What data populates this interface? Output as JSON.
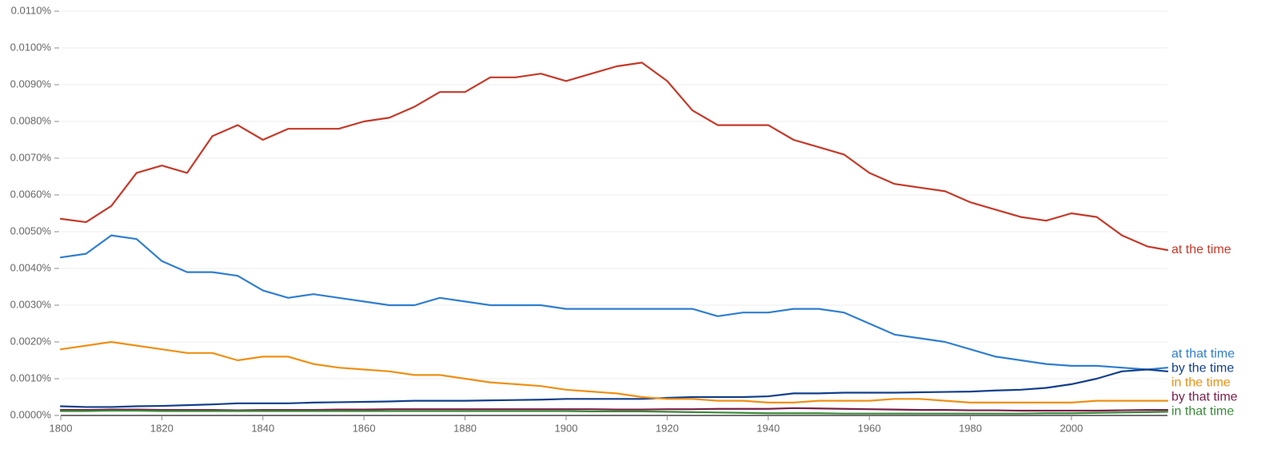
{
  "chart_data": {
    "type": "line",
    "x": [
      1800,
      1805,
      1810,
      1815,
      1820,
      1825,
      1830,
      1835,
      1840,
      1845,
      1850,
      1855,
      1860,
      1865,
      1870,
      1875,
      1880,
      1885,
      1890,
      1895,
      1900,
      1905,
      1910,
      1915,
      1920,
      1925,
      1930,
      1935,
      1940,
      1945,
      1950,
      1955,
      1960,
      1965,
      1970,
      1975,
      1980,
      1985,
      1990,
      1995,
      2000,
      2005,
      2010,
      2015,
      2019
    ],
    "series": [
      {
        "name": "at the time",
        "color": "#c53929",
        "values": [
          0.00535,
          0.00526,
          0.0057,
          0.0066,
          0.0068,
          0.0066,
          0.0076,
          0.0079,
          0.0075,
          0.0078,
          0.0078,
          0.0078,
          0.008,
          0.0081,
          0.0084,
          0.0088,
          0.0088,
          0.0092,
          0.0092,
          0.0093,
          0.0091,
          0.0093,
          0.0095,
          0.0096,
          0.0091,
          0.0083,
          0.0079,
          0.0079,
          0.0079,
          0.0075,
          0.0073,
          0.0071,
          0.0066,
          0.0063,
          0.0062,
          0.0061,
          0.0058,
          0.0056,
          0.0054,
          0.0053,
          0.0055,
          0.0054,
          0.0049,
          0.0046,
          0.0045
        ]
      },
      {
        "name": "at that time",
        "color": "#2f7ed0",
        "values": [
          0.0043,
          0.0044,
          0.0049,
          0.0048,
          0.0042,
          0.0039,
          0.0039,
          0.0038,
          0.0034,
          0.0032,
          0.0033,
          0.0032,
          0.0031,
          0.003,
          0.003,
          0.0032,
          0.0031,
          0.003,
          0.003,
          0.003,
          0.0029,
          0.0029,
          0.0029,
          0.0029,
          0.0029,
          0.0029,
          0.0027,
          0.0028,
          0.0028,
          0.0029,
          0.0029,
          0.0028,
          0.0025,
          0.0022,
          0.0021,
          0.002,
          0.0018,
          0.0016,
          0.0015,
          0.0014,
          0.00135,
          0.00135,
          0.0013,
          0.00125,
          0.0013
        ]
      },
      {
        "name": "by the time",
        "color": "#123f8c",
        "values": [
          0.00025,
          0.00023,
          0.00023,
          0.00025,
          0.00026,
          0.00028,
          0.0003,
          0.00033,
          0.00033,
          0.00033,
          0.00035,
          0.00036,
          0.00037,
          0.00038,
          0.0004,
          0.0004,
          0.0004,
          0.00041,
          0.00042,
          0.00043,
          0.00045,
          0.00045,
          0.00045,
          0.00045,
          0.00048,
          0.0005,
          0.0005,
          0.0005,
          0.00052,
          0.0006,
          0.0006,
          0.00062,
          0.00062,
          0.00062,
          0.00063,
          0.00064,
          0.00065,
          0.00068,
          0.0007,
          0.00075,
          0.00085,
          0.001,
          0.0012,
          0.00125,
          0.0012
        ]
      },
      {
        "name": "in the time",
        "color": "#ef8f13",
        "values": [
          0.0018,
          0.0019,
          0.002,
          0.0019,
          0.0018,
          0.0017,
          0.0017,
          0.0015,
          0.0016,
          0.0016,
          0.0014,
          0.0013,
          0.00125,
          0.0012,
          0.0011,
          0.0011,
          0.001,
          0.0009,
          0.00085,
          0.0008,
          0.0007,
          0.00065,
          0.0006,
          0.0005,
          0.00045,
          0.00045,
          0.0004,
          0.0004,
          0.00035,
          0.00035,
          0.0004,
          0.0004,
          0.0004,
          0.00045,
          0.00045,
          0.0004,
          0.00035,
          0.00035,
          0.00035,
          0.00035,
          0.00035,
          0.0004,
          0.0004,
          0.0004,
          0.0004
        ]
      },
      {
        "name": "by that time",
        "color": "#7b1f47",
        "values": [
          0.00015,
          0.00015,
          0.00016,
          0.00016,
          0.00015,
          0.00015,
          0.00015,
          0.00014,
          0.00015,
          0.00015,
          0.00015,
          0.00016,
          0.00016,
          0.00017,
          0.00017,
          0.00017,
          0.00017,
          0.00017,
          0.00017,
          0.00017,
          0.00017,
          0.00017,
          0.00016,
          0.00016,
          0.00017,
          0.00017,
          0.00018,
          0.00018,
          0.00018,
          0.0002,
          0.00019,
          0.00018,
          0.00017,
          0.00016,
          0.00015,
          0.00015,
          0.00014,
          0.00014,
          0.00013,
          0.00013,
          0.00013,
          0.00013,
          0.00014,
          0.00015,
          0.00015
        ]
      },
      {
        "name": "in that time",
        "color": "#3a8a3a",
        "values": [
          0.00012,
          0.00012,
          0.00013,
          0.00013,
          0.00012,
          0.00012,
          0.00012,
          0.00012,
          0.00012,
          0.00012,
          0.00012,
          0.00012,
          0.00012,
          0.00012,
          0.00012,
          0.00012,
          0.00012,
          0.00012,
          0.00012,
          0.00012,
          0.00012,
          0.00011,
          0.00011,
          0.00011,
          0.0001,
          9e-05,
          8e-05,
          7e-05,
          6e-05,
          6e-05,
          6e-05,
          5e-05,
          5e-05,
          5e-05,
          5e-05,
          5e-05,
          5e-05,
          5e-05,
          5e-05,
          6e-05,
          6e-05,
          7e-05,
          8e-05,
          9e-05,
          0.0001
        ]
      }
    ],
    "xlim": [
      1800,
      2019
    ],
    "xticks": [
      1800,
      1820,
      1840,
      1860,
      1880,
      1900,
      1920,
      1940,
      1960,
      1980,
      2000
    ],
    "ylim": [
      0,
      0.011
    ],
    "yticks": [
      {
        "value": 0,
        "label": "0.0000%"
      },
      {
        "value": 0.001,
        "label": "0.0010%"
      },
      {
        "value": 0.002,
        "label": "0.0020%"
      },
      {
        "value": 0.003,
        "label": "0.0030%"
      },
      {
        "value": 0.004,
        "label": "0.0040%"
      },
      {
        "value": 0.005,
        "label": "0.0050%"
      },
      {
        "value": 0.006,
        "label": "0.0060%"
      },
      {
        "value": 0.007,
        "label": "0.0070%"
      },
      {
        "value": 0.008,
        "label": "0.0080%"
      },
      {
        "value": 0.009,
        "label": "0.0090%"
      },
      {
        "value": 0.01,
        "label": "0.0100%"
      },
      {
        "value": 0.011,
        "label": "0.0110%"
      }
    ],
    "grid": true
  }
}
